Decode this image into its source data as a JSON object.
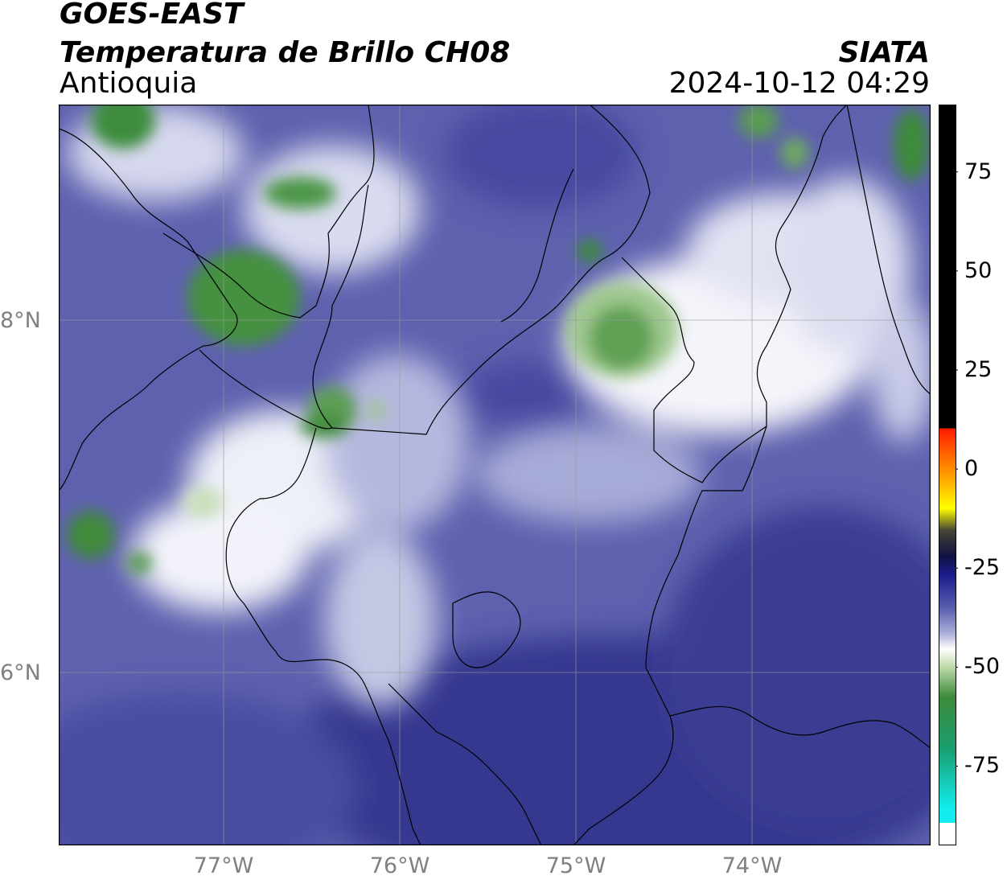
{
  "header": {
    "satellite": "GOES-EAST",
    "product": "Temperatura de Brillo CH08",
    "region": "Antioquia",
    "organization": "SIATA",
    "timestamp": "2024-10-12 04:29"
  },
  "map": {
    "latitude_labels": [
      "8°N",
      "6°N"
    ],
    "longitude_labels": [
      "77°W",
      "76°W",
      "75°W",
      "74°W"
    ],
    "gridlines": true,
    "extent": {
      "lon_min": -77.95,
      "lon_max": -73.0,
      "lat_min": 5.05,
      "lat_max": 9.25
    }
  },
  "colorbar": {
    "tick_labels": [
      "75",
      "50",
      "25",
      "0",
      "-25",
      "-50",
      "-75"
    ],
    "ticks": [
      75,
      50,
      25,
      0,
      -25,
      -50,
      -75
    ],
    "range": [
      -95,
      92
    ],
    "colors": {
      "above_10": "#000000",
      "red": "#ff1a00",
      "orange": "#ff8c00",
      "yellow": "#ffff00",
      "dark_navy": "#111144",
      "navy": "#1c1c8c",
      "mid_blue": "#5a5ead",
      "light_blue": "#aeb2db",
      "white": "#ffffff",
      "light_green": "#bcd9a8",
      "green": "#3d8a3a",
      "teal": "#1fb88a",
      "cyan": "#12ecec"
    }
  }
}
